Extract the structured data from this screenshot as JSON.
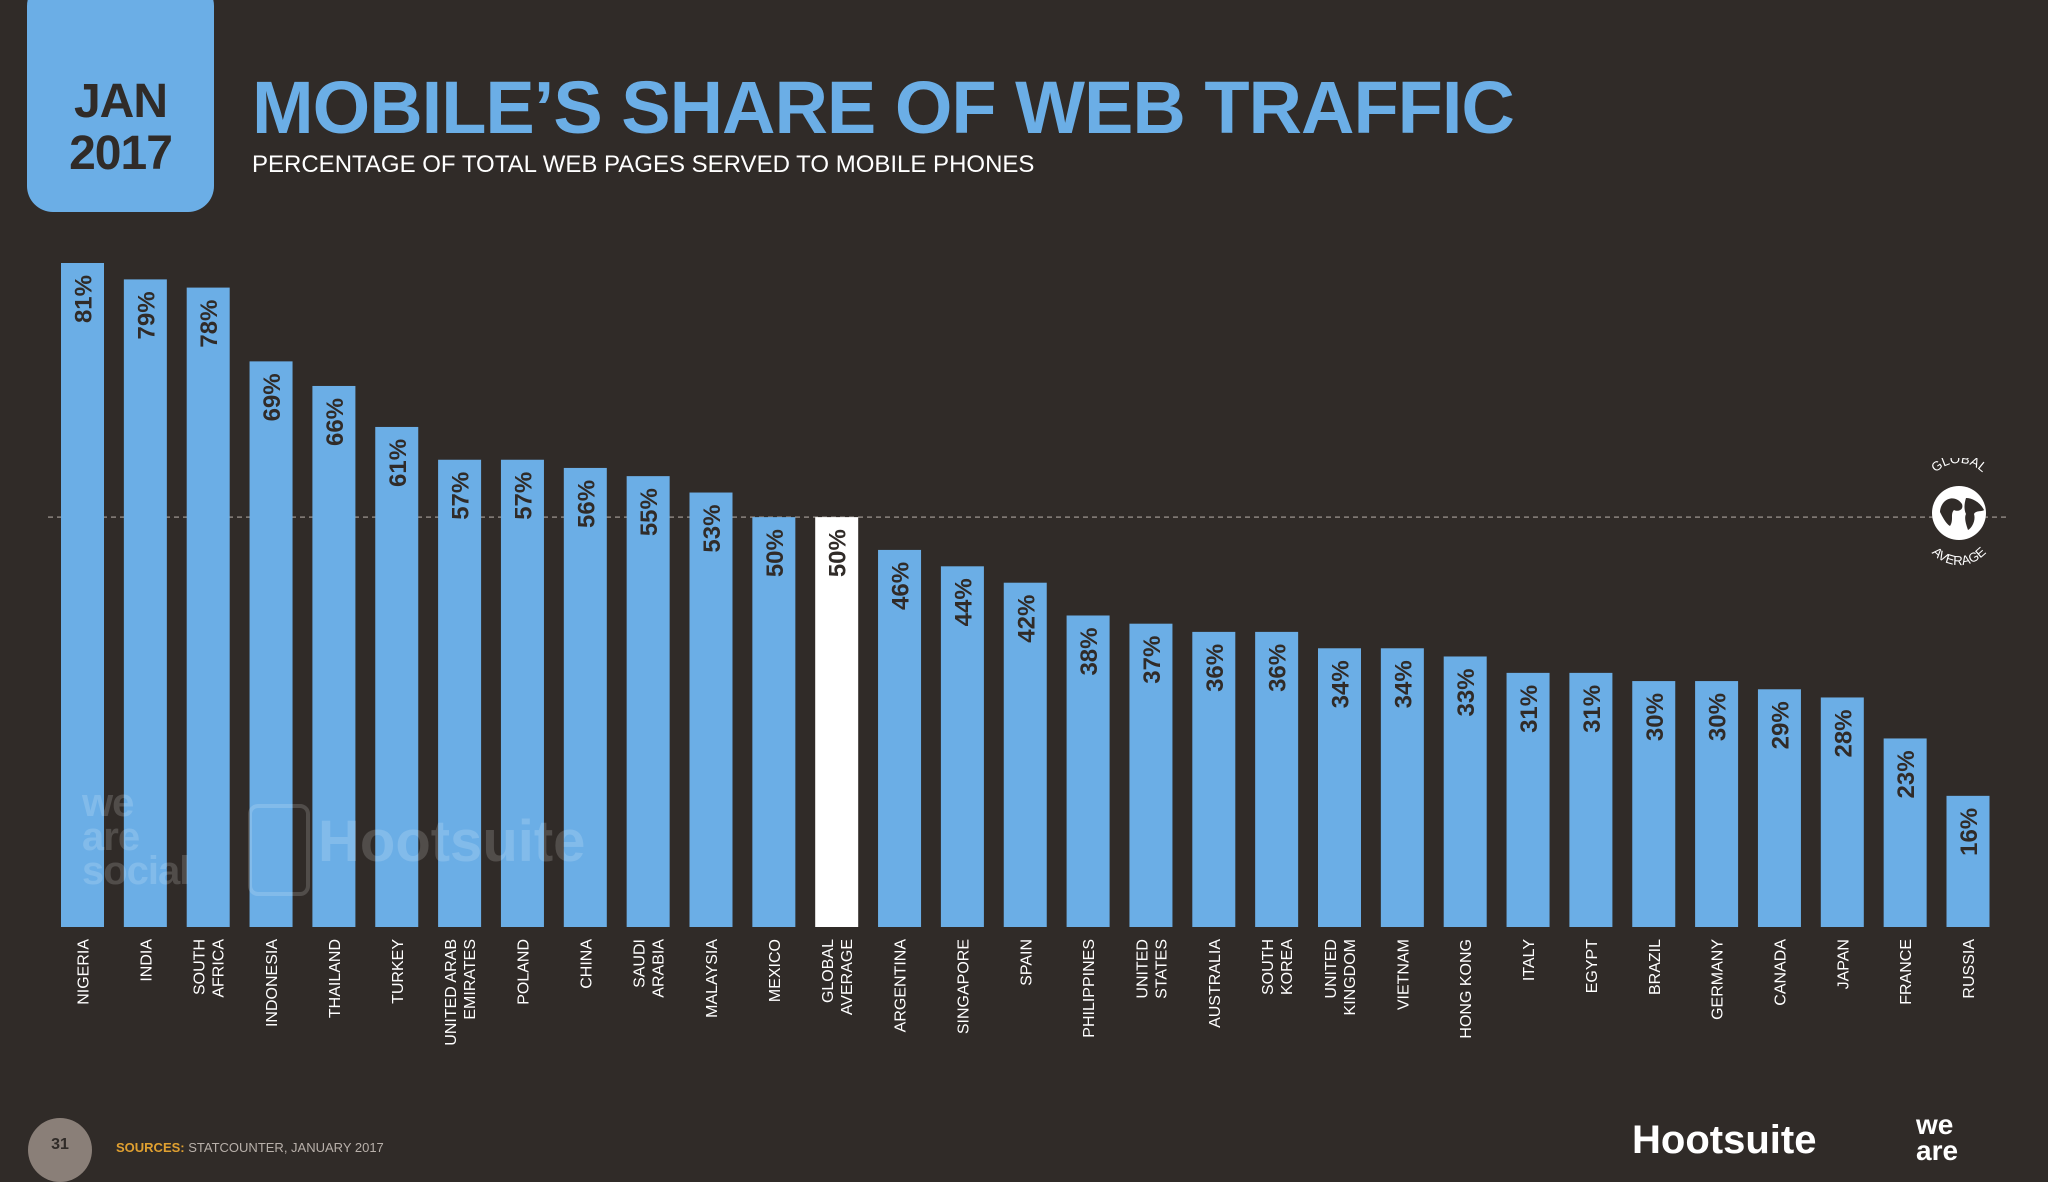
{
  "header": {
    "badge_month": "JAN",
    "badge_year": "2017",
    "title": "MOBILE’S SHARE OF WEB TRAFFIC",
    "subtitle": "PERCENTAGE OF TOTAL WEB PAGES SERVED TO MOBILE PHONES"
  },
  "chart_data": {
    "type": "bar",
    "title": "MOBILE’S SHARE OF WEB TRAFFIC",
    "subtitle": "PERCENTAGE OF TOTAL WEB PAGES SERVED TO MOBILE PHONES",
    "categories": [
      [
        "NIGERIA"
      ],
      [
        "INDIA"
      ],
      [
        "SOUTH",
        "AFRICA"
      ],
      [
        "INDONESIA"
      ],
      [
        "THAILAND"
      ],
      [
        "TURKEY"
      ],
      [
        "UNITED ARAB",
        "EMIRATES"
      ],
      [
        "POLAND"
      ],
      [
        "CHINA"
      ],
      [
        "SAUDI",
        "ARABIA"
      ],
      [
        "MALAYSIA"
      ],
      [
        "MEXICO"
      ],
      [
        "GLOBAL",
        "AVERAGE"
      ],
      [
        "ARGENTINA"
      ],
      [
        "SINGAPORE"
      ],
      [
        "SPAIN"
      ],
      [
        "PHILIPPINES"
      ],
      [
        "UNITED",
        "STATES"
      ],
      [
        "AUSTRALIA"
      ],
      [
        "SOUTH",
        "KOREA"
      ],
      [
        "UNITED",
        "KINGDOM"
      ],
      [
        "VIETNAM"
      ],
      [
        "HONG KONG"
      ],
      [
        "ITALY"
      ],
      [
        "EGYPT"
      ],
      [
        "BRAZIL"
      ],
      [
        "GERMANY"
      ],
      [
        "CANADA"
      ],
      [
        "JAPAN"
      ],
      [
        "FRANCE"
      ],
      [
        "RUSSIA"
      ]
    ],
    "values": [
      81,
      79,
      78,
      69,
      66,
      61,
      57,
      57,
      56,
      55,
      53,
      50,
      50,
      46,
      44,
      42,
      38,
      37,
      36,
      36,
      34,
      34,
      33,
      31,
      31,
      30,
      30,
      29,
      28,
      23,
      16
    ],
    "value_labels": [
      "81%",
      "79%",
      "78%",
      "69%",
      "66%",
      "61%",
      "57%",
      "57%",
      "56%",
      "55%",
      "53%",
      "50%",
      "50%",
      "46%",
      "44%",
      "42%",
      "38%",
      "37%",
      "36%",
      "36%",
      "34%",
      "34%",
      "33%",
      "31%",
      "31%",
      "30%",
      "30%",
      "29%",
      "28%",
      "23%",
      "16%"
    ],
    "highlight_index": 12,
    "reference_line": {
      "value": 50,
      "style": "dashed"
    },
    "ylim": [
      0,
      81
    ],
    "grid": false,
    "colors": {
      "bar": "#6baee6",
      "highlight": "#ffffff",
      "label": "#302b28",
      "reference": "#8a847e",
      "background": "#302b28"
    }
  },
  "global_icon": {
    "label_top": "GLOBAL",
    "label_bottom": "AVERAGE",
    "name": "globe-icon"
  },
  "watermarks": {
    "left": [
      "we",
      "are",
      "social"
    ],
    "brand": "Hootsuite"
  },
  "footer": {
    "page_number": "31",
    "source_label": "SOURCES:",
    "source_text": "STATCOUNTER, JANUARY 2017",
    "brand": "Hootsuite",
    "brand_we": [
      "we",
      "are"
    ]
  }
}
